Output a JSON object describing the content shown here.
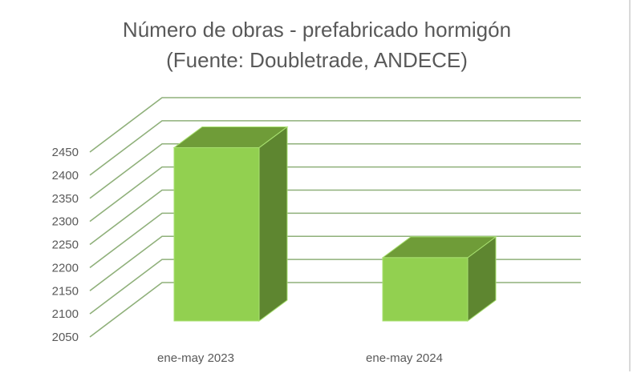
{
  "chart_data": {
    "type": "bar",
    "title": [
      "Número de obras - prefabricado hormigón",
      "(Fuente: Doubletrade, ANDECE)"
    ],
    "categories": [
      "ene-may 2023",
      "ene-may 2024"
    ],
    "values": [
      2425,
      2187
    ],
    "ylim": [
      2050,
      2450
    ],
    "yticks": [
      "2050",
      "2100",
      "2150",
      "2200",
      "2250",
      "2300",
      "2350",
      "2400",
      "2450"
    ],
    "xlabel": "",
    "ylabel": "",
    "grid": true,
    "legend": "none",
    "three_d": true,
    "colors": {
      "front": "#92d050",
      "top": "#6f9c38",
      "side": "#5e8630",
      "grid": "#8fb07a",
      "outline": "#a8e070"
    }
  }
}
